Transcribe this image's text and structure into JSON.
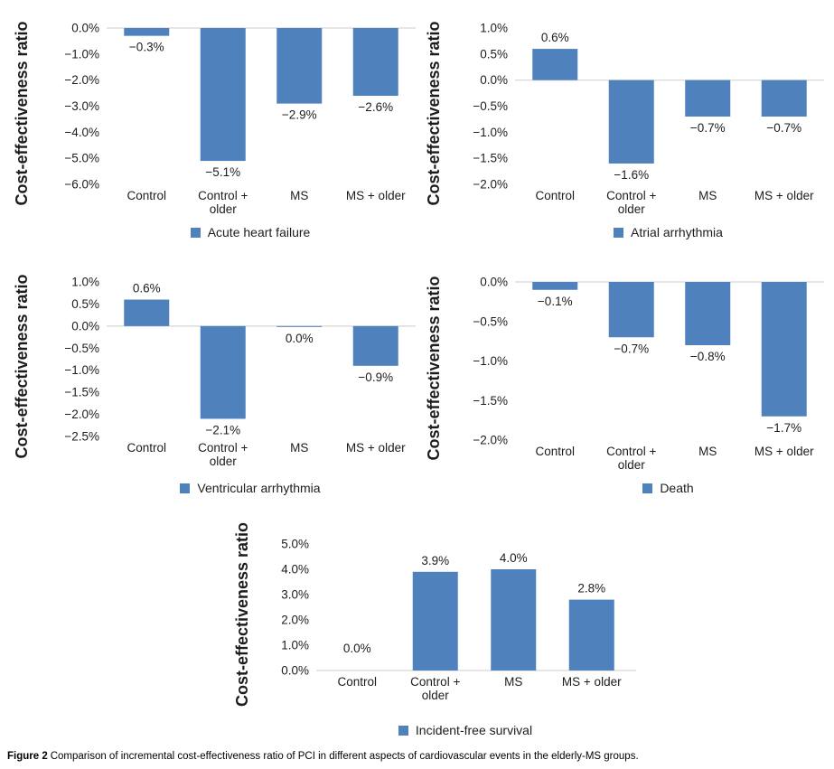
{
  "caption": {
    "figure_label": "Figure 2",
    "text": "Comparison of incremental cost-effectiveness ratio of PCI in different aspects of cardiovascular events in the elderly-MS groups."
  },
  "colors": {
    "bar": "#4f81bd",
    "zero_line": "#d6d6d6",
    "text": "#1c1c1c"
  },
  "chart_data": [
    {
      "type": "bar",
      "legend": "Acute heart failure",
      "ylabel": "Cost-effectiveness ratio",
      "categories": [
        "Control",
        "Control + older",
        "MS",
        "MS + older"
      ],
      "category_lines": [
        [
          "Control"
        ],
        [
          "Control +",
          "older"
        ],
        [
          "MS"
        ],
        [
          "MS + older"
        ]
      ],
      "values": [
        -0.3,
        -5.1,
        -2.9,
        -2.6
      ],
      "data_labels": [
        "−0.3%",
        "−5.1%",
        "−2.9%",
        "−2.6%"
      ],
      "ylim": [
        -6.0,
        0.0
      ],
      "ytick_step": 1.0,
      "ytick_labels": [
        "0.0%",
        "−1.0%",
        "−2.0%",
        "−3.0%",
        "−4.0%",
        "−5.0%",
        "−6.0%"
      ],
      "grid": false,
      "legend_position": "bottom"
    },
    {
      "type": "bar",
      "legend": "Atrial arrhythmia",
      "ylabel": "Cost-effectiveness ratio",
      "categories": [
        "Control",
        "Control + older",
        "MS",
        "MS + older"
      ],
      "category_lines": [
        [
          "Control"
        ],
        [
          "Control +",
          "older"
        ],
        [
          "MS"
        ],
        [
          "MS + older"
        ]
      ],
      "values": [
        0.6,
        -1.6,
        -0.7,
        -0.7
      ],
      "data_labels": [
        "0.6%",
        "−1.6%",
        "−0.7%",
        "−0.7%"
      ],
      "ylim": [
        -2.0,
        1.0
      ],
      "ytick_step": 0.5,
      "ytick_labels": [
        "1.0%",
        "0.5%",
        "0.0%",
        "−0.5%",
        "−1.0%",
        "−1.5%",
        "−2.0%"
      ],
      "grid": false,
      "legend_position": "bottom"
    },
    {
      "type": "bar",
      "legend": "Ventricular arrhythmia",
      "ylabel": "Cost-effectiveness ratio",
      "categories": [
        "Control",
        "Control + older",
        "MS",
        "MS + older"
      ],
      "category_lines": [
        [
          "Control"
        ],
        [
          "Control +",
          "older"
        ],
        [
          "MS"
        ],
        [
          "MS + older"
        ]
      ],
      "values": [
        0.6,
        -2.1,
        -0.02,
        -0.9
      ],
      "data_labels": [
        "0.6%",
        "−2.1%",
        "0.0%",
        "−0.9%"
      ],
      "ylim": [
        -2.5,
        1.0
      ],
      "ytick_step": 0.5,
      "ytick_labels": [
        "1.0%",
        "0.5%",
        "0.0%",
        "−0.5%",
        "−1.0%",
        "−1.5%",
        "−2.0%",
        "−2.5%"
      ],
      "grid": false,
      "legend_position": "bottom"
    },
    {
      "type": "bar",
      "legend": "Death",
      "ylabel": "Cost-effectiveness ratio",
      "categories": [
        "Control",
        "Control + older",
        "MS",
        "MS + older"
      ],
      "category_lines": [
        [
          "Control"
        ],
        [
          "Control +",
          "older"
        ],
        [
          "MS"
        ],
        [
          "MS + older"
        ]
      ],
      "values": [
        -0.1,
        -0.7,
        -0.8,
        -1.7
      ],
      "data_labels": [
        "−0.1%",
        "−0.7%",
        "−0.8%",
        "−1.7%"
      ],
      "ylim": [
        -2.0,
        0.0
      ],
      "ytick_step": 0.5,
      "ytick_labels": [
        "0.0%",
        "−0.5%",
        "−1.0%",
        "−1.5%",
        "−2.0%"
      ],
      "grid": false,
      "legend_position": "bottom"
    },
    {
      "type": "bar",
      "legend": "Incident-free survival",
      "ylabel": "Cost-effectiveness ratio",
      "categories": [
        "Control",
        "Control + older",
        "MS",
        "MS + older"
      ],
      "category_lines": [
        [
          "Control"
        ],
        [
          "Control +",
          "older"
        ],
        [
          "MS"
        ],
        [
          "MS + older"
        ]
      ],
      "values": [
        0.0,
        3.9,
        4.0,
        2.8
      ],
      "data_labels": [
        "0.0%",
        "3.9%",
        "4.0%",
        "2.8%"
      ],
      "ylim": [
        0.0,
        5.0
      ],
      "ytick_step": 1.0,
      "ytick_labels": [
        "5.0%",
        "4.0%",
        "3.0%",
        "2.0%",
        "1.0%",
        "0.0%"
      ],
      "grid": false,
      "legend_position": "bottom"
    }
  ]
}
